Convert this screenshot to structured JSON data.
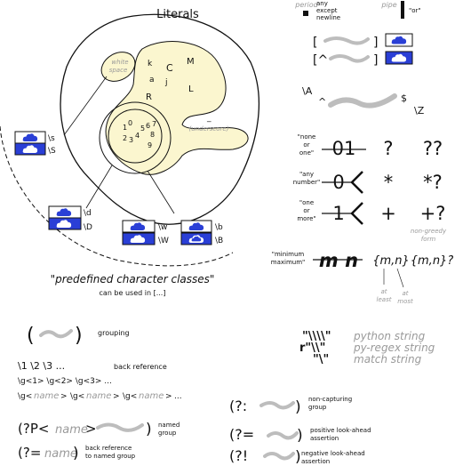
{
  "literals": {
    "title": "Literals",
    "letters": [
      "k",
      "C",
      "M",
      "a",
      "j",
      "L",
      "R"
    ],
    "whitespace_label": "white space",
    "digits": [
      "1",
      "0",
      "5",
      "6",
      "7",
      "2",
      "3",
      "4",
      "8",
      "9"
    ],
    "underscore_label": "_",
    "underscore_caption": "(underscore)"
  },
  "classes": {
    "d": "\\d",
    "D": "\\D",
    "s": "\\s",
    "S": "\\S",
    "w": "\\w",
    "W": "\\W",
    "b": "\\b",
    "B": "\\B",
    "caption": "\"predefined character classes\"",
    "subcaption": "can be used in [...]"
  },
  "top_right": {
    "period_label": "period",
    "period_desc": [
      "any",
      "except",
      "newline"
    ],
    "pipe_label": "pipe",
    "pipe_desc": "\"or\"",
    "set_open": "[",
    "set_close": "]",
    "negset_open": "[^",
    "negset_close": "]"
  },
  "anchors": {
    "A": "\\A",
    "caret": "^",
    "dollar": "$",
    "Z": "\\Z"
  },
  "quantifiers": {
    "none_label": [
      "\"none",
      "or",
      "one\""
    ],
    "any_label": [
      "\"any",
      "number\""
    ],
    "one_label": [
      "\"one",
      "or",
      "more\""
    ],
    "q01": "01",
    "q0": "0",
    "q1": "1",
    "greedy_none": "?",
    "greedy_any": "*",
    "greedy_one": "+",
    "lazy_none": "??",
    "lazy_any": "*?",
    "lazy_one": "+?",
    "nongreedy_label": [
      "non-greedy",
      "form"
    ],
    "minmax_label": [
      "\"minimum",
      "maximum\""
    ],
    "mn": "m n",
    "braces": "{m,n}",
    "braces_lazy": "{m,n}?",
    "at_least": [
      "at",
      "least"
    ],
    "at_most": [
      "at",
      "most"
    ]
  },
  "strings": {
    "python_prefix": "\"\\\\\\\\\"",
    "python_label": "python string",
    "regex_prefix": "r\"\\\\\"",
    "regex_label": "py-regex string",
    "match_prefix": "\"\\\"",
    "match_label": "match string"
  },
  "groups": {
    "grouping": "grouping",
    "backref_nums": "\\1  \\2  \\3  ...",
    "backref_label": "back reference",
    "backref_g": "\\g<1>  \\g<2>  \\g<3>  ...",
    "backref_name_prefix": "\\g<",
    "name": "name",
    "backref_name_suffix": ">",
    "ellipsis": "...",
    "named_open": "(?P<",
    "named_close": ">",
    "named_label": [
      "named",
      "group"
    ],
    "named_ref_open": "(?=",
    "named_ref_label": [
      "back reference",
      "to named group"
    ],
    "noncap": "(?:",
    "noncap_label": [
      "non-capturing",
      "group"
    ],
    "lookahead": "(?=",
    "lookahead_label": [
      "positive look-ahead",
      "assertion"
    ],
    "neglookahead": "(?!",
    "neglookahead_label": [
      "negative look-ahead",
      "assertion"
    ]
  },
  "colors": {
    "blob_fill": "#fbf6cf",
    "icon_blue": "#2a3fd6",
    "squiggle": "#bdbdbd"
  }
}
